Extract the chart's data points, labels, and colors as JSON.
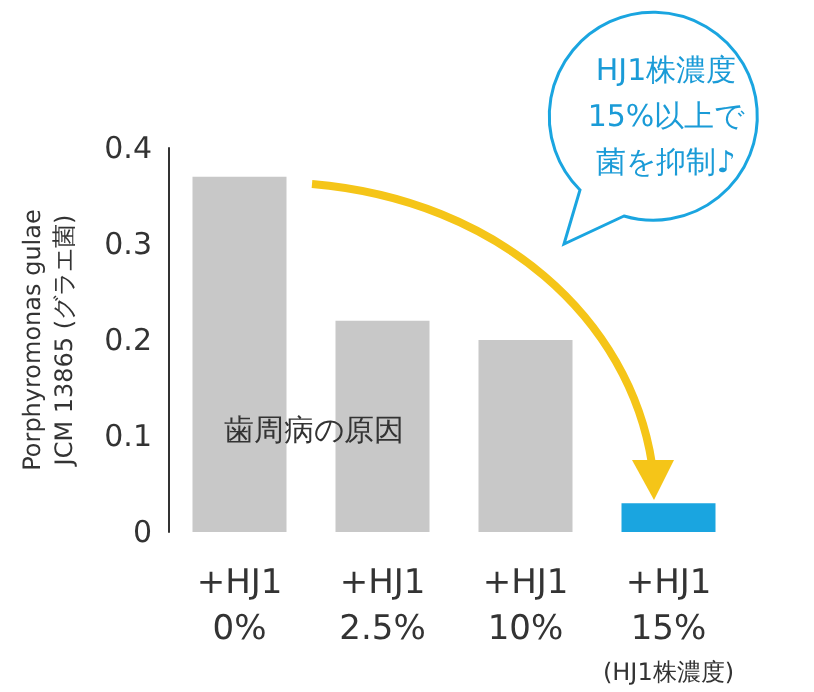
{
  "chart_data": {
    "type": "bar",
    "ylabel": "Porphyromonas gulae\nJCM 13865 (グラエ菌)",
    "categories": [
      "+HJ1\n0%",
      "+HJ1\n2.5%",
      "+HJ1\n10%",
      "+HJ1\n15%\n(HJ1株濃度)"
    ],
    "values": [
      0.37,
      0.22,
      0.2,
      0.03
    ],
    "colors": [
      "#c8c8c8",
      "#c8c8c8",
      "#c8c8c8",
      "#1aa5e0"
    ],
    "ylim": [
      0,
      0.4
    ],
    "yticks": [
      0,
      0.1,
      0.2,
      0.3,
      0.4
    ],
    "grid": false,
    "annotations": [
      "歯周病の原因",
      "HJ1株濃度",
      "15%以上で",
      "菌を抑制♪"
    ]
  }
}
